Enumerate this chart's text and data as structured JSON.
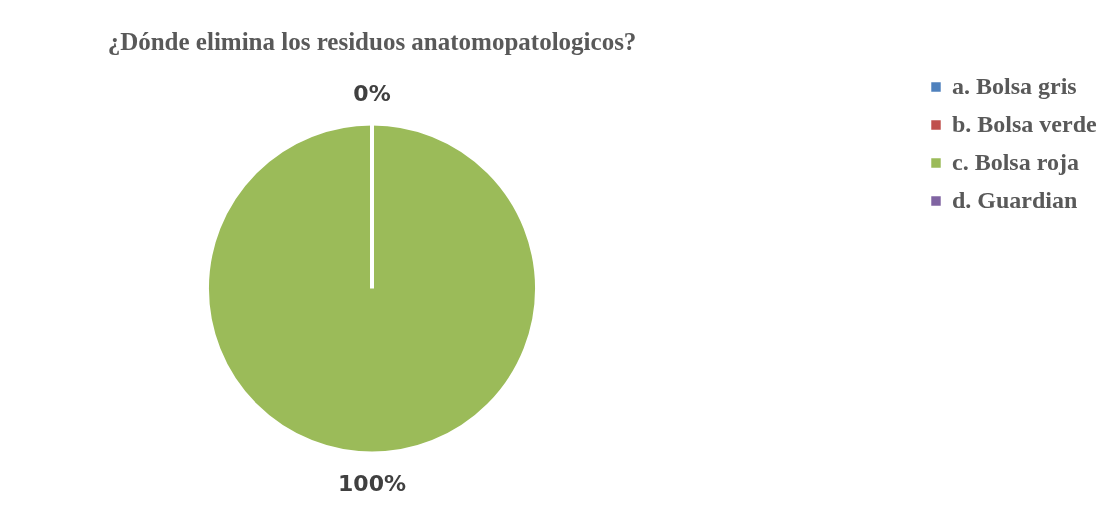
{
  "chart_data": {
    "type": "pie",
    "title": "¿Dónde elimina los residuos anatomopatologicos?",
    "categories": [
      "a. Bolsa gris",
      "b. Bolsa verde",
      "c. Bolsa roja",
      "d. Guardian"
    ],
    "values": [
      0,
      0,
      100,
      0
    ],
    "colors": [
      "#4f81bd",
      "#c0504d",
      "#9bbb59",
      "#8064a2"
    ],
    "value_labels": [
      "0%",
      null,
      "100%",
      null
    ],
    "legend": "right"
  }
}
